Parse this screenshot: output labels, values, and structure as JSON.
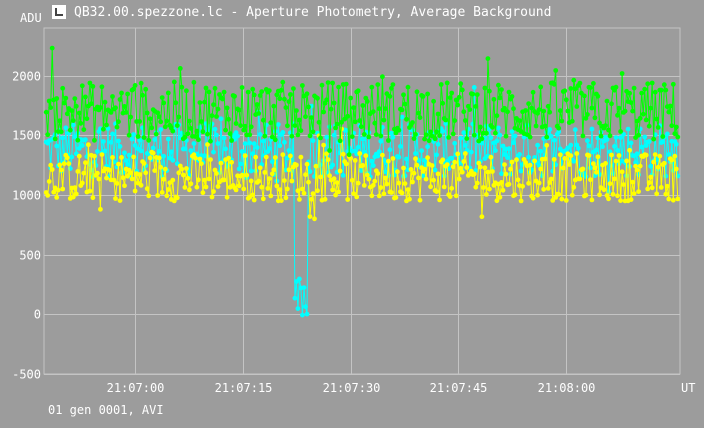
{
  "window": {
    "title": "QB32.00.spezzone.lc - Aperture Photometry, Average Background",
    "icon": "chart-app-icon"
  },
  "status": "01 gen 0001, AVI",
  "chart_data": {
    "type": "line",
    "ylabel": "ADU",
    "xlabel": "UT",
    "ylim": [
      -500,
      2400
    ],
    "y_ticks": [
      -500,
      0,
      500,
      1000,
      1500,
      2000
    ],
    "x_ticks": [
      "21:07:00",
      "21:07:15",
      "21:07:30",
      "21:07:45",
      "21:08:00"
    ],
    "x_tick_seconds": [
      60,
      75,
      90,
      105,
      120
    ],
    "x_range_seconds": [
      47.3,
      135.9
    ],
    "grid": true,
    "series": [
      {
        "color": "#00ffff",
        "level_min": 1150,
        "level_max": 1600,
        "dip": {
          "from_s": 82.1,
          "to_s": 84.0,
          "value": 50,
          "min": -40,
          "max": 360
        }
      },
      {
        "color": "#ffff00",
        "level_min": 950,
        "level_max": 1350
      },
      {
        "color": "#00ff00",
        "level_min": 1450,
        "level_max": 1950
      }
    ]
  }
}
